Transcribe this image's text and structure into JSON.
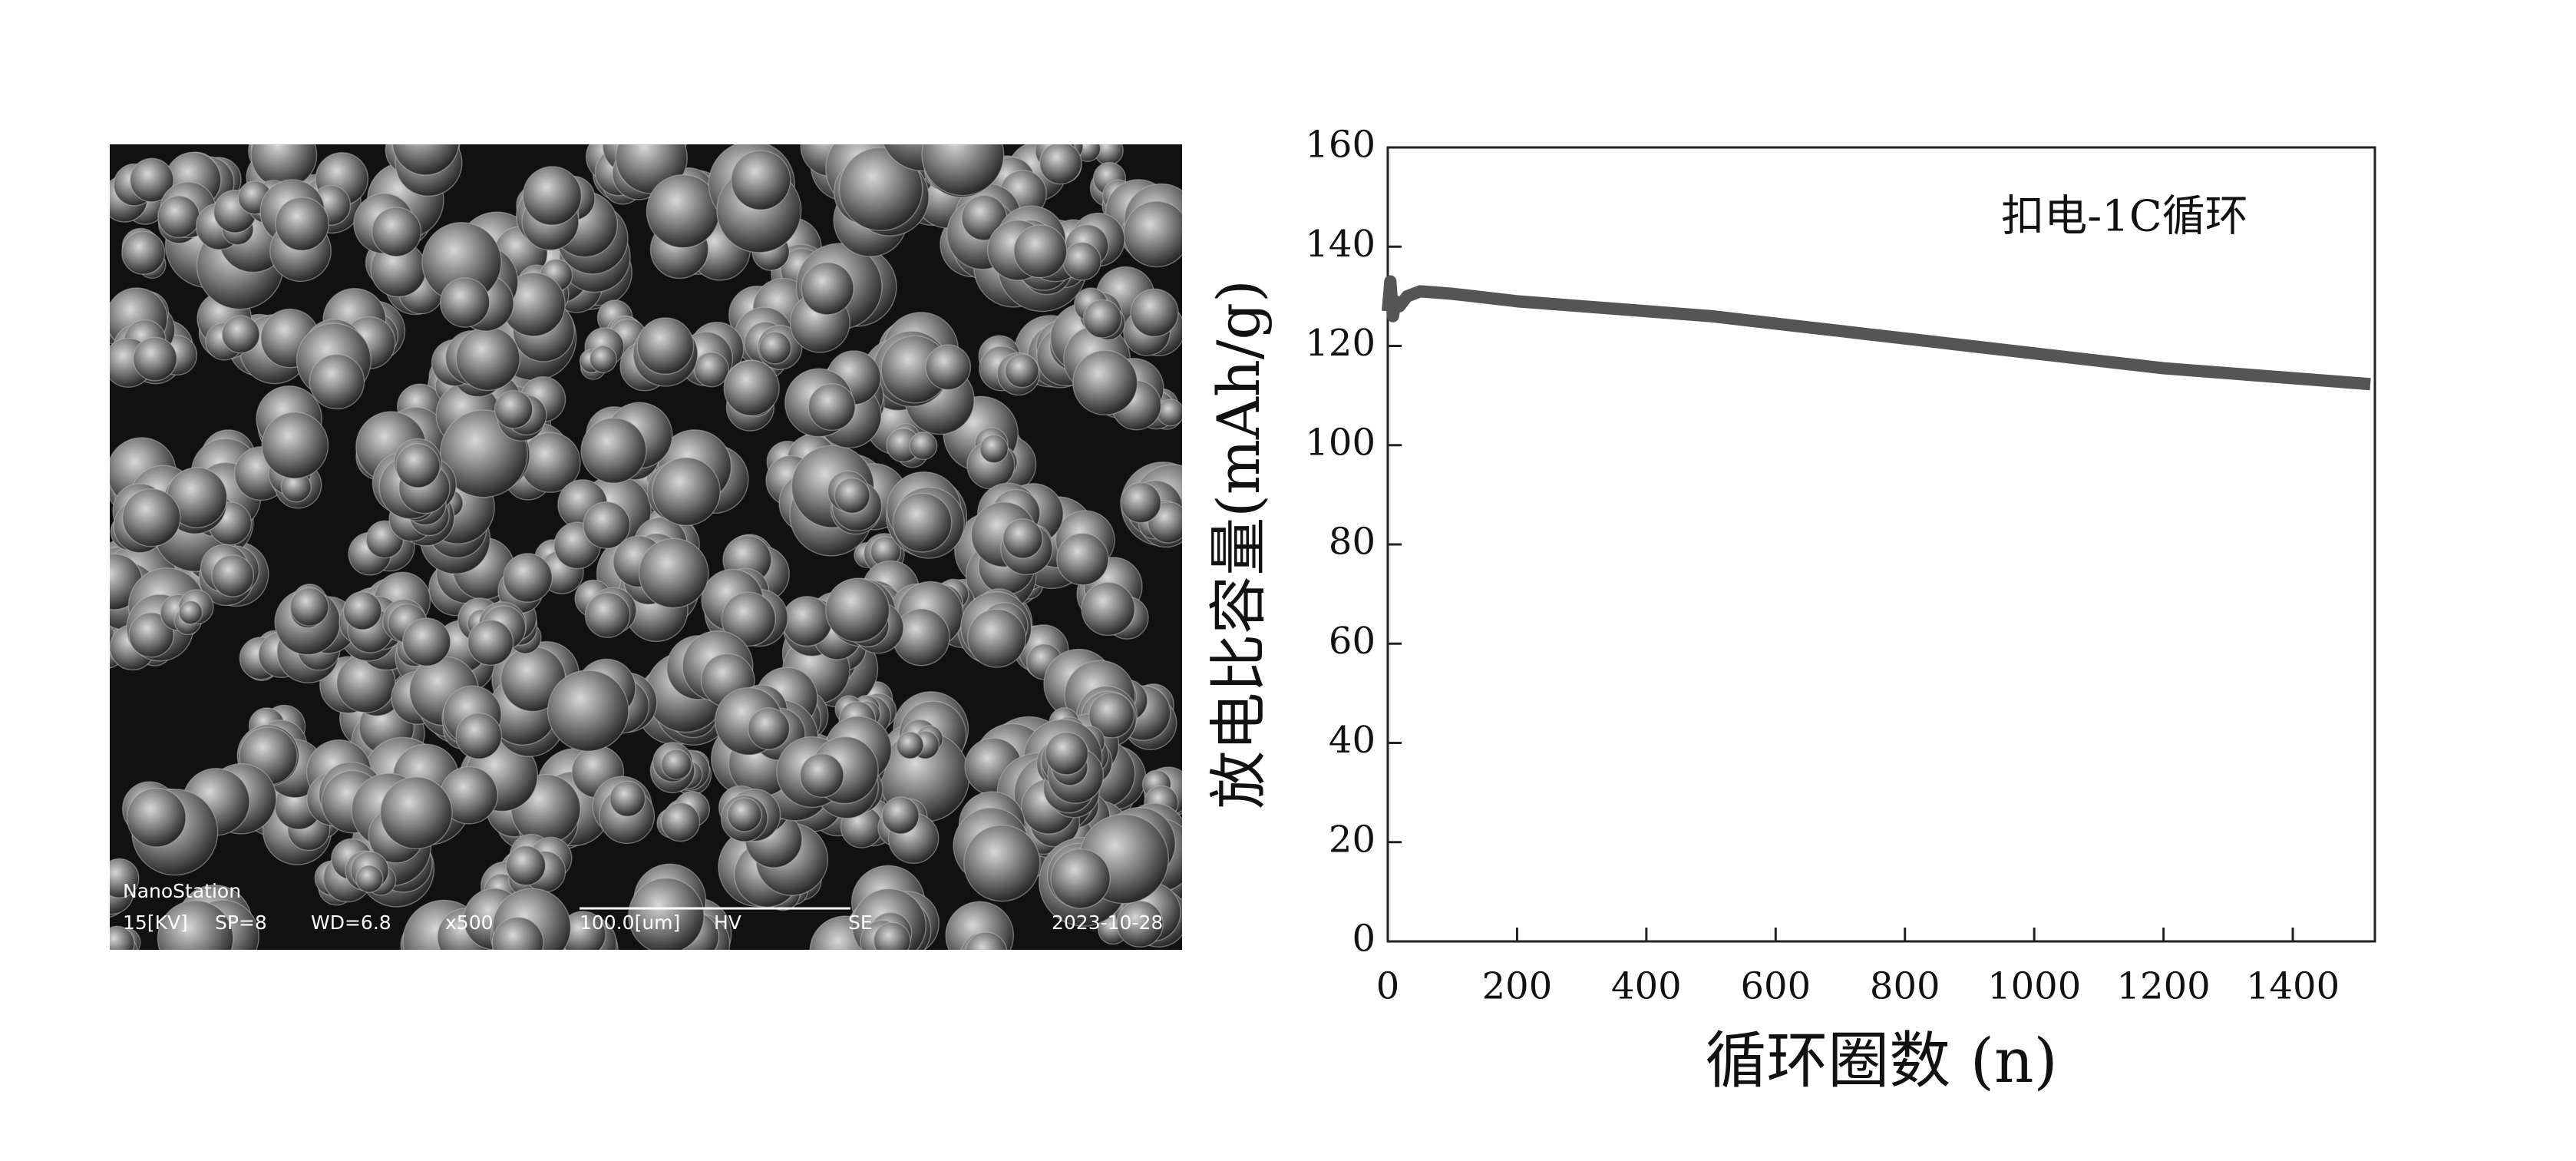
{
  "sem_image": {
    "brand": "NanoStation",
    "info": [
      "15[KV]",
      "SP=8",
      "WD=6.8",
      "x500",
      "100.0[um]",
      "HV",
      "SE",
      "2023-10-28"
    ]
  },
  "chart_data": {
    "type": "line",
    "annotation": "扣电-1C循环",
    "x_label": "循环圈数 (n)",
    "y_label": "放电比容量(mAh/g)",
    "x": [
      0,
      4,
      8,
      12,
      18,
      30,
      50,
      100,
      200,
      300,
      400,
      500,
      600,
      700,
      800,
      900,
      1000,
      1100,
      1200,
      1300,
      1400,
      1500,
      1520
    ],
    "series": [
      {
        "name": "扣电-1C循环",
        "color": "#555555",
        "values": [
          127,
          133,
          126,
          129,
          128,
          130,
          131,
          130.5,
          129,
          128,
          127,
          126,
          124.5,
          123,
          121.5,
          120,
          118.5,
          117,
          115.5,
          114.5,
          113.5,
          112.5,
          112.3
        ]
      }
    ],
    "xlim": [
      0,
      1527
    ],
    "ylim": [
      0,
      160
    ],
    "xticks": [
      0,
      200,
      400,
      600,
      800,
      1000,
      1200,
      1400
    ],
    "yticks": [
      0,
      20,
      40,
      60,
      80,
      100,
      120,
      140,
      160
    ]
  }
}
